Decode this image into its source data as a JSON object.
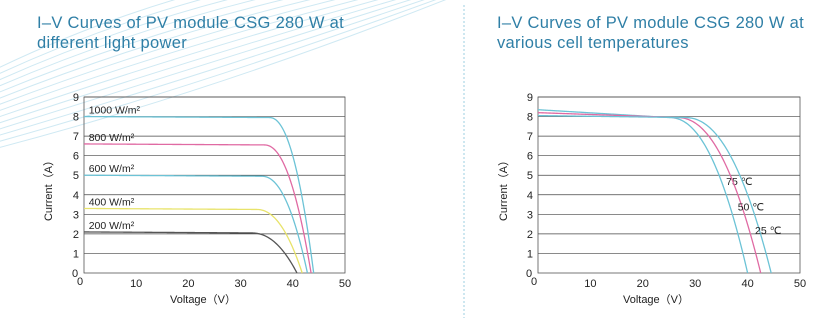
{
  "chart_data": [
    {
      "type": "line",
      "title_line1": "I–V Curves of PV module CSG 280 W at",
      "title_line2": "different  light  power",
      "xlabel": "Voltage（V）",
      "ylabel": "Current（A）",
      "xlim": [
        0,
        50
      ],
      "ylim": [
        0,
        9
      ],
      "xticks": [
        0,
        10,
        20,
        30,
        40,
        50
      ],
      "yticks": [
        0,
        1,
        2,
        3,
        4,
        5,
        6,
        7,
        8,
        9
      ],
      "grid": "horizontal",
      "series": [
        {
          "name": "1000 W/m²",
          "color": "#6cc3d6",
          "isc": 8.0,
          "voc": 44.0,
          "knee": 35.5,
          "n": 7
        },
        {
          "name": "800 W/m²",
          "color": "#e06aa3",
          "isc": 6.6,
          "voc": 43.5,
          "knee": 34.5,
          "n": 7
        },
        {
          "name": "600 W/m²",
          "color": "#6cc3d6",
          "isc": 5.0,
          "voc": 42.8,
          "knee": 34.0,
          "n": 7
        },
        {
          "name": "400 W/m²",
          "color": "#e8e36a",
          "isc": 3.3,
          "voc": 41.8,
          "knee": 33.0,
          "n": 6
        },
        {
          "name": "200 W/m²",
          "color": "#555555",
          "isc": 2.1,
          "voc": 40.8,
          "knee": 32.0,
          "n": 6
        }
      ]
    },
    {
      "type": "line",
      "title_line1": "I–V Curves of PV module CSG 280 W at",
      "title_line2": "various  cell  temperatures",
      "xlabel": "Voltage（V）",
      "ylabel": "Current（A）",
      "xlim": [
        0,
        50
      ],
      "ylim": [
        0,
        9
      ],
      "xticks": [
        0,
        10,
        20,
        30,
        40,
        50
      ],
      "yticks": [
        0,
        1,
        2,
        3,
        4,
        5,
        6,
        7,
        8,
        9
      ],
      "grid": "horizontal",
      "series": [
        {
          "name": "75 ℃",
          "color": "#6cc3d6",
          "isc": 8.35,
          "voc": 40.0,
          "knee": 25.0,
          "n": 4
        },
        {
          "name": "50 ℃",
          "color": "#e06aa3",
          "isc": 8.2,
          "voc": 42.5,
          "knee": 26.5,
          "n": 4
        },
        {
          "name": "25 ℃",
          "color": "#6cc3d6",
          "isc": 8.05,
          "voc": 44.5,
          "knee": 28.0,
          "n": 4
        }
      ]
    }
  ]
}
